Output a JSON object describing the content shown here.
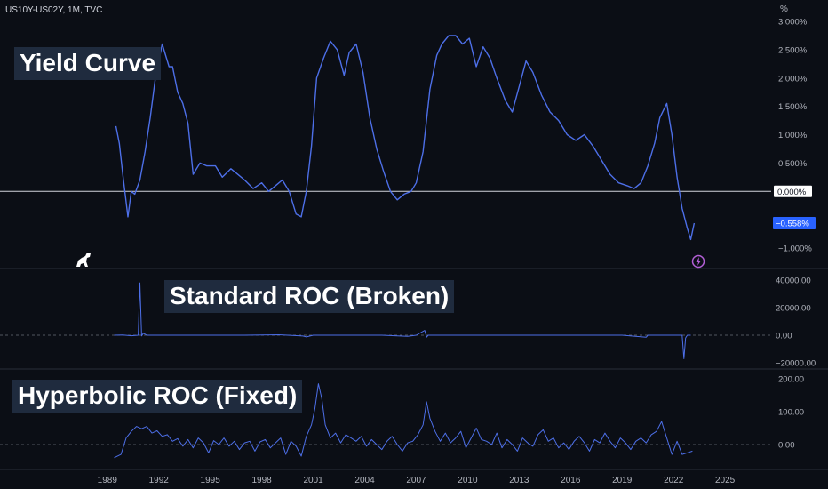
{
  "header": {
    "symbol_info": "US10Y-US02Y, 1M, TVC",
    "axis_unit": "%"
  },
  "titles": {
    "main": "Yield Curve",
    "roc": "Standard ROC (Broken)",
    "hroc": "Hyperbolic ROC (Fixed)"
  },
  "colors": {
    "background": "#0b0e15",
    "line": "#4d6fe8",
    "zero_line": "#d1d4dc",
    "last_badge": "#2962ff",
    "pane_separator": "#2a2e39",
    "axis_text": "#b2b5be",
    "title_box": "#1f2b3e",
    "lightning": "#b35fd6"
  },
  "icons": {
    "logo": "dinosaur-logo-icon",
    "events": "lightning-icon"
  },
  "x_axis": {
    "ticks": [
      "1989",
      "1992",
      "1995",
      "1998",
      "2001",
      "2004",
      "2007",
      "2010",
      "2013",
      "2016",
      "2019",
      "2022",
      "2025"
    ]
  },
  "chart_data": [
    {
      "name": "yield-curve",
      "type": "line",
      "title": "Yield Curve",
      "unit": "%",
      "ylim": [
        -1.3,
        3.0
      ],
      "y_ticks": [
        "3.000%",
        "2.500%",
        "2.000%",
        "1.500%",
        "1.000%",
        "0.500%",
        "0.000%",
        "−1.000%"
      ],
      "zero_label": "0.000%",
      "last_value_label": "−0.558%",
      "x": [
        1989.5,
        1989.7,
        1989.9,
        1990.2,
        1990.4,
        1990.6,
        1990.9,
        1991.2,
        1991.5,
        1991.8,
        1992.2,
        1992.6,
        1992.8,
        1993.1,
        1993.4,
        1993.7,
        1994.0,
        1994.4,
        1994.8,
        1995.3,
        1995.7,
        1996.2,
        1996.6,
        1997.0,
        1997.5,
        1998.0,
        1998.4,
        1998.8,
        1999.2,
        1999.6,
        2000.0,
        2000.3,
        2000.6,
        2000.9,
        2001.2,
        2001.6,
        2002.0,
        2002.4,
        2002.8,
        2003.1,
        2003.5,
        2003.9,
        2004.3,
        2004.7,
        2005.1,
        2005.5,
        2005.9,
        2006.3,
        2006.7,
        2007.0,
        2007.4,
        2007.8,
        2008.2,
        2008.5,
        2008.9,
        2009.3,
        2009.7,
        2010.1,
        2010.5,
        2010.9,
        2011.3,
        2011.7,
        2012.2,
        2012.6,
        2013.0,
        2013.4,
        2013.8,
        2014.3,
        2014.8,
        2015.3,
        2015.8,
        2016.3,
        2016.8,
        2017.3,
        2017.8,
        2018.3,
        2018.8,
        2019.3,
        2019.7,
        2020.1,
        2020.5,
        2020.9,
        2021.2,
        2021.6,
        2021.9,
        2022.2,
        2022.5,
        2022.8,
        2023.0,
        2023.2
      ],
      "y": [
        1.15,
        0.85,
        0.3,
        -0.45,
        0.0,
        -0.05,
        0.2,
        0.7,
        1.3,
        2.0,
        2.6,
        2.2,
        2.2,
        1.75,
        1.55,
        1.2,
        0.3,
        0.5,
        0.45,
        0.45,
        0.25,
        0.4,
        0.3,
        0.2,
        0.05,
        0.15,
        0.0,
        0.1,
        0.2,
        0.0,
        -0.4,
        -0.45,
        0.0,
        0.8,
        2.0,
        2.35,
        2.65,
        2.5,
        2.05,
        2.45,
        2.6,
        2.1,
        1.3,
        0.75,
        0.35,
        0.0,
        -0.15,
        -0.05,
        0.0,
        0.15,
        0.7,
        1.8,
        2.4,
        2.6,
        2.75,
        2.75,
        2.6,
        2.7,
        2.2,
        2.55,
        2.35,
        2.0,
        1.6,
        1.4,
        1.85,
        2.3,
        2.1,
        1.7,
        1.4,
        1.25,
        1.0,
        0.9,
        1.0,
        0.8,
        0.55,
        0.3,
        0.15,
        0.1,
        0.05,
        0.15,
        0.45,
        0.85,
        1.3,
        1.55,
        1.0,
        0.25,
        -0.3,
        -0.65,
        -0.85,
        -0.56
      ]
    },
    {
      "name": "standard-roc",
      "type": "line",
      "title": "Standard ROC (Broken)",
      "ylim": [
        -25000,
        45000
      ],
      "y_ticks": [
        "40000.00",
        "20000.00",
        "0.00",
        "−20000.00"
      ],
      "x": [
        1989.4,
        1989.9,
        1990.4,
        1990.8,
        1990.9,
        1991.0,
        1991.1,
        1991.3,
        1993.0,
        1995.0,
        1997.0,
        1999.0,
        2000.4,
        2000.6,
        2001.0,
        2003.0,
        2005.0,
        2006.5,
        2007.0,
        2007.5,
        2007.6,
        2007.7,
        2009.0,
        2011.0,
        2013.0,
        2015.0,
        2017.0,
        2019.0,
        2020.4,
        2020.5,
        2021.0,
        2022.0,
        2022.5,
        2022.6,
        2022.7,
        2022.8,
        2023.0
      ],
      "y": [
        0,
        200,
        -400,
        0,
        38000,
        -500,
        1500,
        0,
        0,
        0,
        0,
        300,
        -600,
        -1200,
        0,
        0,
        0,
        -800,
        0,
        3500,
        -1500,
        0,
        0,
        0,
        0,
        0,
        0,
        0,
        -1500,
        0,
        0,
        0,
        0,
        -17000,
        -2000,
        0,
        0
      ]
    },
    {
      "name": "hyperbolic-roc",
      "type": "line",
      "title": "Hyperbolic ROC (Fixed)",
      "ylim": [
        -50,
        210
      ],
      "y_ticks": [
        "200.00",
        "100.00",
        "0.00"
      ],
      "x": [
        1989.4,
        1989.8,
        1990.1,
        1990.4,
        1990.7,
        1991.0,
        1991.3,
        1991.6,
        1991.9,
        1992.2,
        1992.5,
        1992.8,
        1993.1,
        1993.4,
        1993.7,
        1994.0,
        1994.3,
        1994.6,
        1994.9,
        1995.2,
        1995.5,
        1995.8,
        1996.1,
        1996.4,
        1996.7,
        1997.0,
        1997.3,
        1997.6,
        1997.9,
        1998.2,
        1998.5,
        1998.8,
        1999.1,
        1999.4,
        1999.7,
        2000.0,
        2000.3,
        2000.6,
        2000.9,
        2001.1,
        2001.3,
        2001.5,
        2001.7,
        2002.0,
        2002.3,
        2002.6,
        2002.9,
        2003.2,
        2003.5,
        2003.8,
        2004.1,
        2004.4,
        2004.7,
        2005.0,
        2005.3,
        2005.6,
        2005.9,
        2006.2,
        2006.5,
        2006.8,
        2007.1,
        2007.4,
        2007.6,
        2007.8,
        2008.1,
        2008.4,
        2008.7,
        2009.0,
        2009.3,
        2009.6,
        2009.9,
        2010.2,
        2010.5,
        2010.8,
        2011.1,
        2011.4,
        2011.7,
        2012.0,
        2012.3,
        2012.6,
        2012.9,
        2013.2,
        2013.5,
        2013.8,
        2014.1,
        2014.4,
        2014.7,
        2015.0,
        2015.3,
        2015.6,
        2015.9,
        2016.2,
        2016.5,
        2016.8,
        2017.1,
        2017.4,
        2017.7,
        2018.0,
        2018.3,
        2018.6,
        2018.9,
        2019.2,
        2019.5,
        2019.8,
        2020.1,
        2020.4,
        2020.7,
        2021.0,
        2021.3,
        2021.6,
        2021.9,
        2022.2,
        2022.5,
        2022.8,
        2023.1
      ],
      "y": [
        -40,
        -30,
        20,
        40,
        55,
        48,
        55,
        35,
        42,
        25,
        30,
        10,
        18,
        -5,
        15,
        -10,
        20,
        5,
        -25,
        12,
        0,
        20,
        -5,
        10,
        -15,
        5,
        10,
        -20,
        8,
        15,
        -10,
        5,
        20,
        -30,
        10,
        -5,
        -35,
        25,
        60,
        110,
        185,
        140,
        60,
        20,
        35,
        5,
        30,
        20,
        10,
        25,
        -5,
        15,
        0,
        -15,
        10,
        25,
        0,
        -20,
        5,
        10,
        30,
        60,
        130,
        80,
        40,
        10,
        35,
        5,
        20,
        40,
        -10,
        20,
        50,
        15,
        10,
        0,
        35,
        -10,
        15,
        0,
        -20,
        20,
        5,
        -5,
        30,
        45,
        10,
        20,
        -10,
        5,
        -15,
        10,
        25,
        5,
        -20,
        15,
        5,
        35,
        10,
        -10,
        20,
        5,
        -15,
        10,
        20,
        5,
        30,
        40,
        70,
        20,
        -30,
        10,
        -30,
        -25,
        -20
      ]
    }
  ]
}
